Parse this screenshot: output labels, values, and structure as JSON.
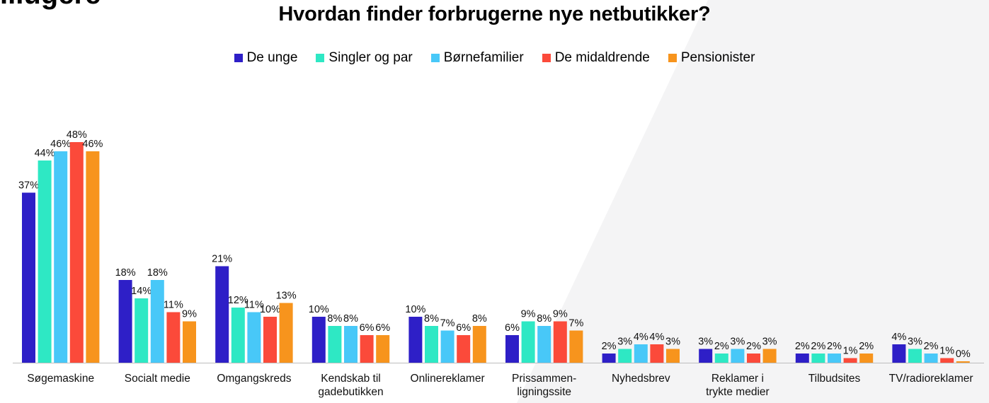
{
  "header": {
    "title": "Hvordan finder forbrugerne nye netbutikker?",
    "corner_text": "...ugere"
  },
  "colors": {
    "background": "#ffffff",
    "axis": "#bdbdbd"
  },
  "chart_data": {
    "type": "bar",
    "title": "Hvordan finder forbrugerne nye netbutikker?",
    "xlabel": "",
    "ylabel": "",
    "ylim": [
      0,
      50
    ],
    "grid": false,
    "legend_position": "top-center",
    "value_suffix": "%",
    "categories": [
      [
        "Søgemaskine"
      ],
      [
        "Socialt medie"
      ],
      [
        "Omgangskreds"
      ],
      [
        "Kendskab til",
        "gadebutikken"
      ],
      [
        "Onlinereklamer"
      ],
      [
        "Prissammen-",
        "ligningssite"
      ],
      [
        "Nyhedsbrev"
      ],
      [
        "Reklamer i",
        "trykte medier"
      ],
      [
        "Tilbudsites"
      ],
      [
        "TV/radioreklamer"
      ]
    ],
    "series": [
      {
        "name": "De unge",
        "color": "#2e1fc7",
        "values": [
          37,
          18,
          21,
          10,
          10,
          6,
          2,
          3,
          2,
          4
        ]
      },
      {
        "name": "Singler og par",
        "color": "#2ee8c4",
        "values": [
          44,
          14,
          12,
          8,
          8,
          9,
          3,
          2,
          2,
          3
        ]
      },
      {
        "name": "Børnefamilier",
        "color": "#48c8f8",
        "values": [
          46,
          18,
          11,
          8,
          7,
          8,
          4,
          3,
          2,
          2
        ]
      },
      {
        "name": "De midaldrende",
        "color": "#fb4a3a",
        "values": [
          48,
          11,
          10,
          6,
          6,
          9,
          4,
          2,
          1,
          1
        ]
      },
      {
        "name": "Pensionister",
        "color": "#f7941d",
        "values": [
          46,
          9,
          13,
          6,
          8,
          7,
          3,
          3,
          2,
          0
        ]
      }
    ]
  }
}
